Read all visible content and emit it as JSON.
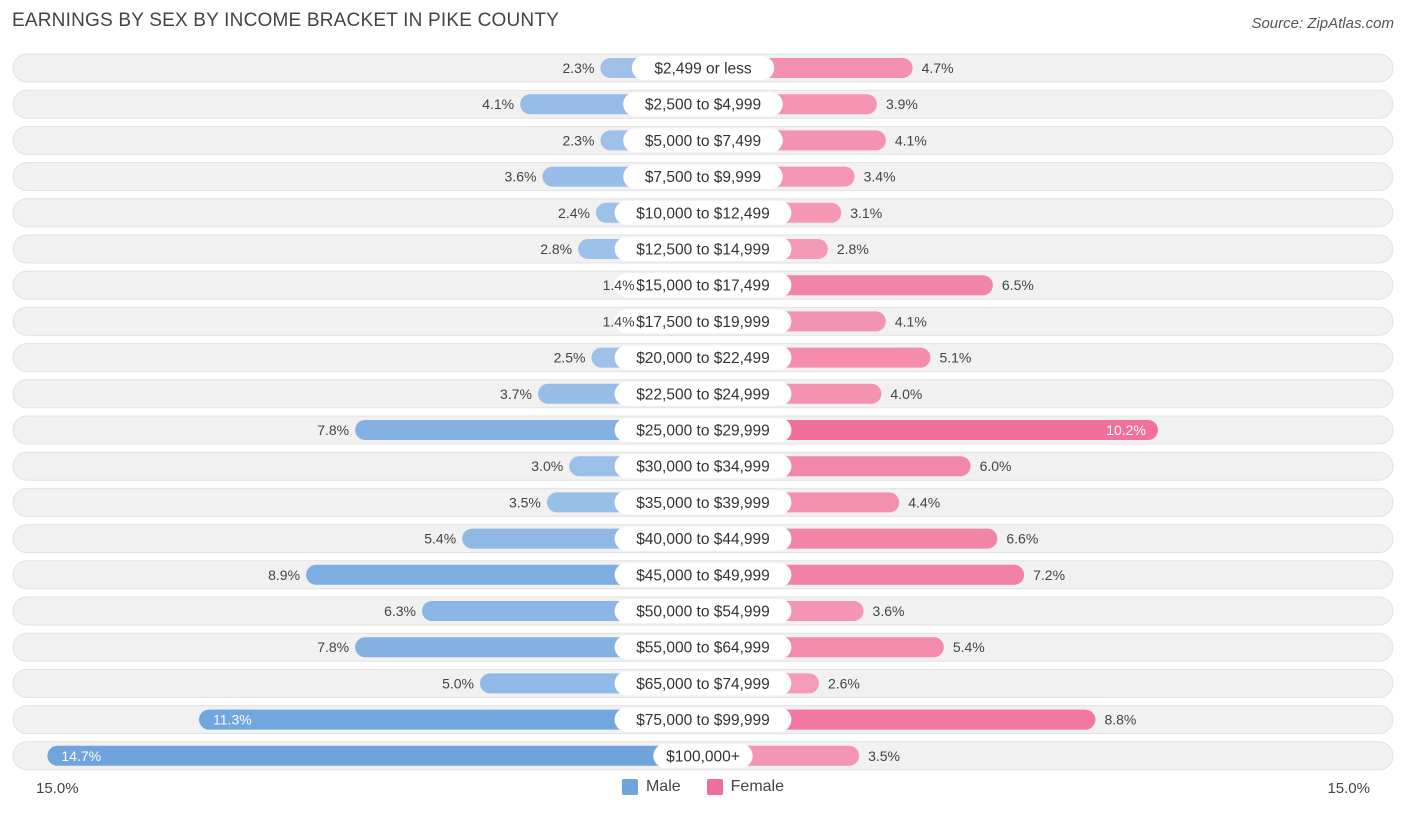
{
  "header": {
    "title": "EARNINGS BY SEX BY INCOME BRACKET IN PIKE COUNTY",
    "source": "Source: ZipAtlas.com"
  },
  "axis": {
    "left_label": "15.0%",
    "right_label": "15.0%"
  },
  "legend": {
    "male_label": "Male",
    "female_label": "Female"
  },
  "colors": {
    "male": "#6fa4dd",
    "male_light": "#aac8ec",
    "female": "#f06e98",
    "female_light": "#f6a9c1",
    "row_bg": "#f1f1f1"
  },
  "chart_data": {
    "type": "bar",
    "orientation": "horizontal-diverging",
    "title": "EARNINGS BY SEX BY INCOME BRACKET IN PIKE COUNTY",
    "xlim": [
      -15.0,
      15.0
    ],
    "categories": [
      "$2,499 or less",
      "$2,500 to $4,999",
      "$5,000 to $7,499",
      "$7,500 to $9,999",
      "$10,000 to $12,499",
      "$12,500 to $14,999",
      "$15,000 to $17,499",
      "$17,500 to $19,999",
      "$20,000 to $22,499",
      "$22,500 to $24,999",
      "$25,000 to $29,999",
      "$30,000 to $34,999",
      "$35,000 to $39,999",
      "$40,000 to $44,999",
      "$45,000 to $49,999",
      "$50,000 to $54,999",
      "$55,000 to $64,999",
      "$65,000 to $74,999",
      "$75,000 to $99,999",
      "$100,000+"
    ],
    "series": [
      {
        "name": "Male",
        "values": [
          2.3,
          4.1,
          2.3,
          3.6,
          2.4,
          2.8,
          1.4,
          1.4,
          2.5,
          3.7,
          7.8,
          3.0,
          3.5,
          5.4,
          8.9,
          6.3,
          7.8,
          5.0,
          11.3,
          14.7
        ],
        "labels": [
          "2.3%",
          "4.1%",
          "2.3%",
          "3.6%",
          "2.4%",
          "2.8%",
          "1.4%",
          "1.4%",
          "2.5%",
          "3.7%",
          "7.8%",
          "3.0%",
          "3.5%",
          "5.4%",
          "8.9%",
          "6.3%",
          "7.8%",
          "5.0%",
          "11.3%",
          "14.7%"
        ]
      },
      {
        "name": "Female",
        "values": [
          4.7,
          3.9,
          4.1,
          3.4,
          3.1,
          2.8,
          6.5,
          4.1,
          5.1,
          4.0,
          10.2,
          6.0,
          4.4,
          6.6,
          7.2,
          3.6,
          5.4,
          2.6,
          8.8,
          3.5
        ],
        "labels": [
          "4.7%",
          "3.9%",
          "4.1%",
          "3.4%",
          "3.1%",
          "2.8%",
          "6.5%",
          "4.1%",
          "5.1%",
          "4.0%",
          "10.2%",
          "6.0%",
          "4.4%",
          "6.6%",
          "7.2%",
          "3.6%",
          "5.4%",
          "2.6%",
          "8.8%",
          "3.5%"
        ]
      }
    ]
  }
}
